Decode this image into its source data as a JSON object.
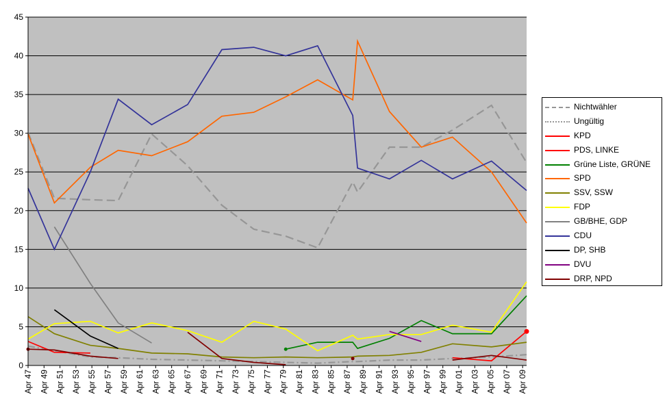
{
  "chart_data": {
    "type": "line",
    "ylim": [
      0,
      45
    ],
    "yticks": [
      0,
      5,
      10,
      15,
      20,
      25,
      30,
      35,
      40,
      45
    ],
    "xlim": [
      1947,
      2009.5
    ],
    "categories": [
      "Apr 47",
      "Apr 49",
      "Apr 51",
      "Apr 53",
      "Apr 55",
      "Apr 57",
      "Apr 59",
      "Apr 61",
      "Apr 63",
      "Apr 65",
      "Apr 67",
      "Apr 69",
      "Apr 71",
      "Apr 73",
      "Apr 75",
      "Apr 77",
      "Apr 79",
      "Apr 81",
      "Apr 83",
      "Apr 85",
      "Apr 87",
      "Apr 89",
      "Apr 91",
      "Apr 93",
      "Apr 95",
      "Apr 97",
      "Apr 99",
      "Apr 01",
      "Apr 03",
      "Apr 05",
      "Apr 07",
      "Apr 09"
    ],
    "category_years": [
      1947,
      1949,
      1951,
      1953,
      1955,
      1957,
      1959,
      1961,
      1963,
      1965,
      1967,
      1969,
      1971,
      1973,
      1975,
      1977,
      1979,
      1981,
      1983,
      1985,
      1987,
      1989,
      1991,
      1993,
      1995,
      1997,
      1999,
      2001,
      2003,
      2005,
      2007,
      2009
    ],
    "grid": "horizontal",
    "background": "#c0c0c0",
    "legend_position": "right",
    "series": [
      {
        "name": "Nichtwähler",
        "color": "#969696",
        "dash": "long-dash",
        "points": [
          [
            1947,
            30.1
          ],
          [
            1950.3,
            21.6
          ],
          [
            1954.8,
            21.4
          ],
          [
            1958.3,
            21.3
          ],
          [
            1962.5,
            29.9
          ],
          [
            1967,
            25.8
          ],
          [
            1971.3,
            20.7
          ],
          [
            1975.3,
            17.6
          ],
          [
            1979.3,
            16.7
          ],
          [
            1983.3,
            15.2
          ],
          [
            1987.7,
            23.7
          ],
          [
            1988.3,
            22.4
          ],
          [
            1992.3,
            28.2
          ],
          [
            1996.3,
            28.2
          ],
          [
            2000.2,
            30.4
          ],
          [
            2005.1,
            33.6
          ],
          [
            2009.5,
            26.2
          ]
        ]
      },
      {
        "name": "Ungültig",
        "color": "#969696",
        "dash": "dash-dot",
        "points": [
          [
            1947,
            2.5
          ],
          [
            1950.3,
            1.9
          ],
          [
            1954.8,
            1.1
          ],
          [
            1958.3,
            1.0
          ],
          [
            1962.5,
            0.8
          ],
          [
            1967,
            0.7
          ],
          [
            1971.3,
            0.6
          ],
          [
            1975.3,
            0.5
          ],
          [
            1979.3,
            0.4
          ],
          [
            1983.3,
            0.3
          ],
          [
            1987.7,
            0.5
          ],
          [
            1988.3,
            0.5
          ],
          [
            1992.3,
            0.7
          ],
          [
            1996.3,
            0.7
          ],
          [
            2000.2,
            0.9
          ],
          [
            2005.1,
            1.1
          ],
          [
            2009.5,
            1.4
          ]
        ]
      },
      {
        "name": "KPD",
        "color": "#ff0000",
        "dash": "solid",
        "points": [
          [
            1947,
            3.1
          ],
          [
            1950.3,
            1.7
          ],
          [
            1954.8,
            1.6
          ]
        ]
      },
      {
        "name": "PDS, LINKE",
        "color": "#ff0000",
        "dash": "solid",
        "points": [
          [
            2000.2,
            1.0
          ],
          [
            2005.1,
            0.6
          ],
          [
            2009.5,
            4.4
          ]
        ],
        "marker_last": true
      },
      {
        "name": "Grüne Liste, GRÜNE",
        "color": "#008000",
        "dash": "solid",
        "points": [
          [
            1979.3,
            2.1
          ],
          [
            1983.3,
            3.0
          ],
          [
            1987.7,
            3.0
          ],
          [
            1988.3,
            2.2
          ],
          [
            1992.3,
            3.5
          ],
          [
            1996.3,
            5.8
          ],
          [
            2000.2,
            4.1
          ],
          [
            2005.1,
            4.1
          ],
          [
            2009.5,
            9.0
          ]
        ],
        "marker_first": true
      },
      {
        "name": "SPD",
        "color": "#ff6600",
        "dash": "solid",
        "points": [
          [
            1947,
            29.9
          ],
          [
            1950.3,
            21.0
          ],
          [
            1954.8,
            25.6
          ],
          [
            1958.3,
            27.8
          ],
          [
            1962.5,
            27.1
          ],
          [
            1967,
            28.9
          ],
          [
            1971.3,
            32.2
          ],
          [
            1975.3,
            32.7
          ],
          [
            1979.3,
            34.7
          ],
          [
            1983.3,
            36.9
          ],
          [
            1987.7,
            34.3
          ],
          [
            1988.3,
            41.9
          ],
          [
            1992.3,
            32.8
          ],
          [
            1996.3,
            28.2
          ],
          [
            2000.2,
            29.5
          ],
          [
            2005.1,
            25.0
          ],
          [
            2009.5,
            18.4
          ]
        ]
      },
      {
        "name": "SSV, SSW",
        "color": "#808000",
        "dash": "solid",
        "points": [
          [
            1947,
            6.3
          ],
          [
            1950.3,
            4.1
          ],
          [
            1954.8,
            2.6
          ],
          [
            1958.3,
            2.2
          ],
          [
            1962.5,
            1.6
          ],
          [
            1967,
            1.5
          ],
          [
            1971.3,
            1.1
          ],
          [
            1975.3,
            1.0
          ],
          [
            1979.3,
            1.1
          ],
          [
            1983.3,
            1.0
          ],
          [
            1987.7,
            1.1
          ],
          [
            1988.3,
            1.2
          ],
          [
            1992.3,
            1.3
          ],
          [
            1996.3,
            1.7
          ],
          [
            2000.2,
            2.8
          ],
          [
            2005.1,
            2.4
          ],
          [
            2009.5,
            3.0
          ]
        ]
      },
      {
        "name": "FDP",
        "color": "#ffff00",
        "dash": "solid",
        "points": [
          [
            1947,
            3.4
          ],
          [
            1950.3,
            5.4
          ],
          [
            1954.8,
            5.7
          ],
          [
            1958.3,
            4.2
          ],
          [
            1962.5,
            5.5
          ],
          [
            1967,
            4.5
          ],
          [
            1971.3,
            3.0
          ],
          [
            1975.3,
            5.7
          ],
          [
            1979.3,
            4.7
          ],
          [
            1983.3,
            1.9
          ],
          [
            1987.7,
            3.9
          ],
          [
            1988.3,
            3.4
          ],
          [
            1992.3,
            4.0
          ],
          [
            1996.3,
            4.0
          ],
          [
            2000.2,
            5.2
          ],
          [
            2005.1,
            4.3
          ],
          [
            2009.5,
            10.8
          ]
        ]
      },
      {
        "name": "GB/BHE, GDP",
        "color": "#808080",
        "dash": "solid",
        "points": [
          [
            1950.3,
            17.9
          ],
          [
            1954.8,
            10.6
          ],
          [
            1958.3,
            5.5
          ],
          [
            1962.5,
            2.9
          ]
        ]
      },
      {
        "name": "CDU",
        "color": "#333399",
        "dash": "solid",
        "points": [
          [
            1947,
            22.9
          ],
          [
            1950.3,
            15.0
          ],
          [
            1954.8,
            25.0
          ],
          [
            1958.3,
            34.4
          ],
          [
            1962.5,
            31.1
          ],
          [
            1967,
            33.7
          ],
          [
            1971.3,
            40.8
          ],
          [
            1975.3,
            41.1
          ],
          [
            1979.3,
            40.0
          ],
          [
            1983.3,
            41.3
          ],
          [
            1987.7,
            32.3
          ],
          [
            1988.3,
            25.5
          ],
          [
            1992.3,
            24.1
          ],
          [
            1996.3,
            26.5
          ],
          [
            2000.2,
            24.1
          ],
          [
            2005.1,
            26.4
          ],
          [
            2009.5,
            22.6
          ]
        ]
      },
      {
        "name": "DP, SHB",
        "color": "#000000",
        "dash": "solid",
        "points": [
          [
            1950.3,
            7.2
          ],
          [
            1954.8,
            3.8
          ],
          [
            1958.3,
            2.2
          ]
        ]
      },
      {
        "name": "DVU",
        "color": "#800080",
        "dash": "solid",
        "points": [
          [
            1992.3,
            4.4
          ],
          [
            1996.3,
            3.1
          ]
        ]
      },
      {
        "name": "DRP, NPD",
        "color": "#800000",
        "dash": "solid",
        "points": [
          [
            1947,
            2.1
          ],
          [
            1950.3,
            2.0
          ],
          [
            1954.8,
            1.2
          ],
          [
            1958.3,
            0.9
          ],
          [
            1967,
            4.3
          ],
          [
            1971.3,
            0.9
          ],
          [
            1975.3,
            0.4
          ],
          [
            1979.3,
            0.1
          ],
          [
            1987.7,
            0.9
          ],
          [
            2000.2,
            0.7
          ],
          [
            2005.1,
            1.3
          ],
          [
            2009.5,
            0.7
          ]
        ],
        "segments": [
          [
            0,
            4
          ],
          [
            4,
            8
          ],
          [
            8,
            9
          ],
          [
            9,
            12
          ]
        ],
        "marker_first": true,
        "marker_index": 8
      }
    ]
  }
}
